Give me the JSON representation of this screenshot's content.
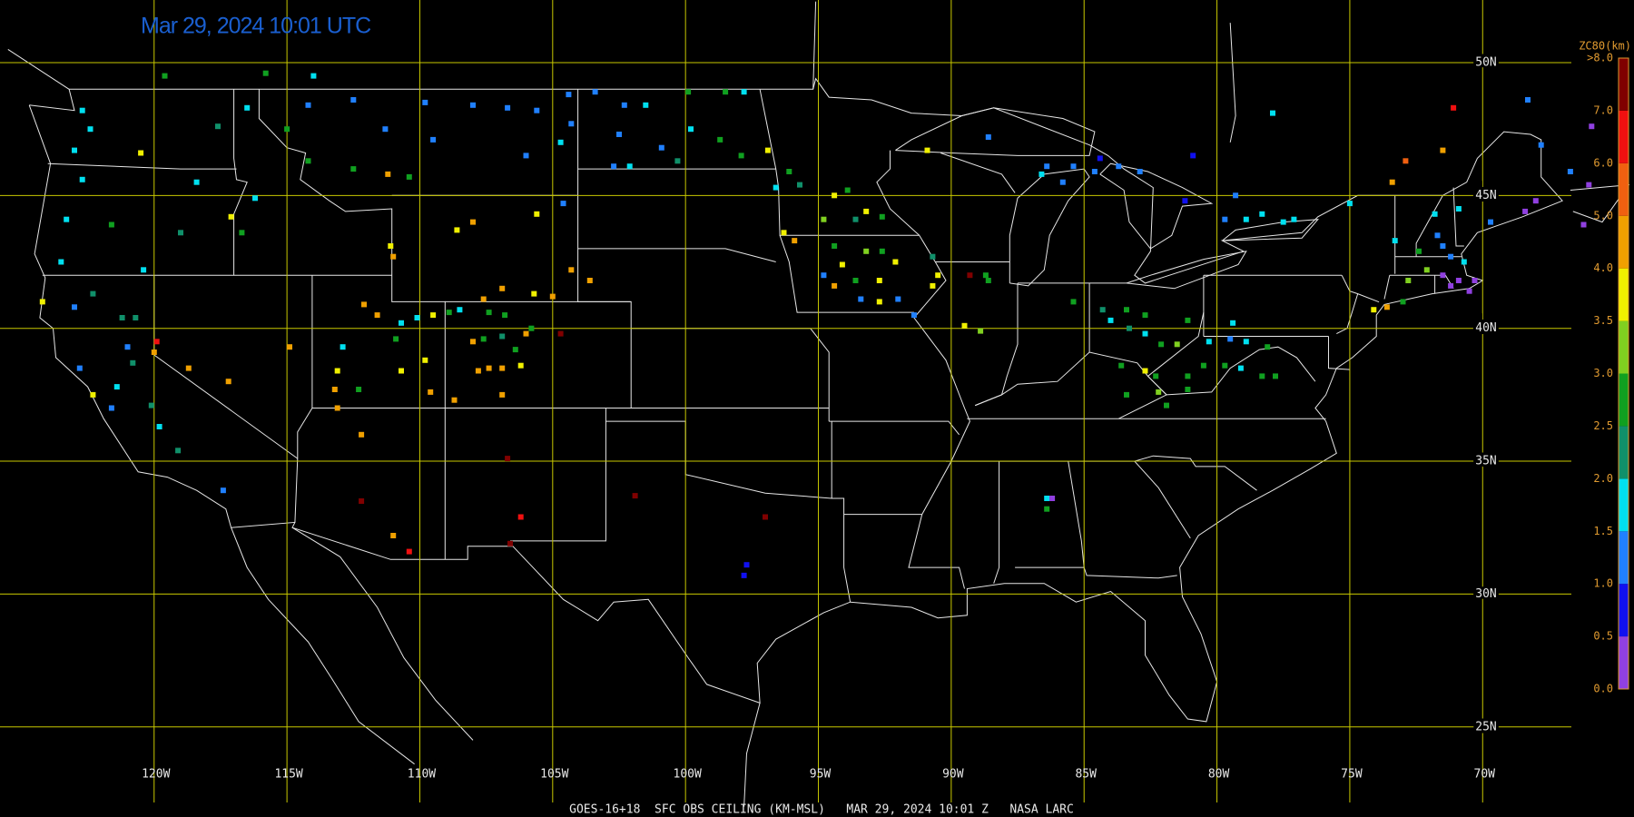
{
  "map": {
    "title": "Mar 29, 2024 10:01 UTC",
    "footer": "GOES-16+18  SFC OBS CEILING (KM-MSL)   MAR 29, 2024 10:01 Z   NASA LARC",
    "lon_ticks": [
      {
        "value": -120,
        "label": "120W"
      },
      {
        "value": -115,
        "label": "115W"
      },
      {
        "value": -110,
        "label": "110W"
      },
      {
        "value": -105,
        "label": "105W"
      },
      {
        "value": -100,
        "label": "100W"
      },
      {
        "value": -95,
        "label": "95W"
      },
      {
        "value": -90,
        "label": "90W"
      },
      {
        "value": -85,
        "label": "85W"
      },
      {
        "value": -80,
        "label": "80W"
      },
      {
        "value": -75,
        "label": "75W"
      },
      {
        "value": -70,
        "label": "70W"
      }
    ],
    "lat_ticks": [
      {
        "value": 50,
        "label": "50N"
      },
      {
        "value": 45,
        "label": "45N"
      },
      {
        "value": 40,
        "label": "40N"
      },
      {
        "value": 35,
        "label": "35N"
      },
      {
        "value": 30,
        "label": "30N"
      },
      {
        "value": 25,
        "label": "25N"
      }
    ],
    "grid_color": "#c8c800",
    "colorbar": {
      "title": "ZC80(km)",
      "levels": [
        {
          "value": 0,
          "label": "0.0"
        },
        {
          "value": 0.5,
          "label": "0.5"
        },
        {
          "value": 1,
          "label": "1.0"
        },
        {
          "value": 1.5,
          "label": "1.5"
        },
        {
          "value": 2,
          "label": "2.0"
        },
        {
          "value": 2.5,
          "label": "2.5"
        },
        {
          "value": 3,
          "label": "3.0"
        },
        {
          "value": 3.5,
          "label": "3.5"
        },
        {
          "value": 4,
          "label": "4.0"
        },
        {
          "value": 5,
          "label": "5.0"
        },
        {
          "value": 6,
          "label": "6.0"
        },
        {
          "value": 7,
          "label": "7.0"
        },
        {
          "value": 8,
          "label": ">8.0"
        }
      ],
      "colors": [
        "#9040e0",
        "#1010f0",
        "#2080ff",
        "#00e0f0",
        "#10906a",
        "#10a020",
        "#80d020",
        "#f0f000",
        "#f0a000",
        "#f06010",
        "#f01010",
        "#800000"
      ]
    },
    "stations": [
      [
        -119.6,
        49.5,
        2.8
      ],
      [
        -115.8,
        49.6,
        2.8
      ],
      [
        -114.0,
        49.5,
        1.8
      ],
      [
        -122.7,
        48.2,
        1.8
      ],
      [
        -122.4,
        47.5,
        1.8
      ],
      [
        -123.0,
        46.7,
        1.8
      ],
      [
        -122.7,
        45.6,
        1.8
      ],
      [
        -120.5,
        46.6,
        3.8
      ],
      [
        -118.4,
        45.5,
        1.8
      ],
      [
        -116.5,
        48.3,
        1.8
      ],
      [
        -117.6,
        47.6,
        2.2
      ],
      [
        -116.2,
        44.9,
        1.8
      ],
      [
        -117.1,
        44.2,
        3.8
      ],
      [
        -116.7,
        43.6,
        2.8
      ],
      [
        -121.6,
        43.9,
        2.8
      ],
      [
        -123.3,
        44.1,
        1.8
      ],
      [
        -123.5,
        42.5,
        1.8
      ],
      [
        -119.0,
        43.6,
        2.2
      ],
      [
        -120.4,
        42.2,
        1.8
      ],
      [
        -124.2,
        41.0,
        3.8
      ],
      [
        -123.0,
        40.8,
        1.2
      ],
      [
        -122.3,
        41.3,
        2.2
      ],
      [
        -121.2,
        40.4,
        2.2
      ],
      [
        -120.7,
        40.4,
        2.2
      ],
      [
        -119.9,
        39.5,
        6.5
      ],
      [
        -120.0,
        39.1,
        4.5
      ],
      [
        -118.7,
        38.5,
        4.5
      ],
      [
        -117.2,
        38.0,
        4.5
      ],
      [
        -121.0,
        39.3,
        1.2
      ],
      [
        -120.8,
        38.7,
        2.2
      ],
      [
        -122.8,
        38.5,
        1.2
      ],
      [
        -122.3,
        37.5,
        3.8
      ],
      [
        -121.4,
        37.8,
        1.8
      ],
      [
        -121.6,
        37.0,
        1.2
      ],
      [
        -120.1,
        37.1,
        2.2
      ],
      [
        -119.8,
        36.3,
        1.8
      ],
      [
        -119.1,
        35.4,
        2.2
      ],
      [
        -117.4,
        33.9,
        1.2
      ],
      [
        -112.5,
        48.6,
        1.2
      ],
      [
        -114.2,
        48.4,
        1.2
      ],
      [
        -111.3,
        47.5,
        1.2
      ],
      [
        -109.8,
        48.5,
        1.2
      ],
      [
        -108.0,
        48.4,
        1.2
      ],
      [
        -109.5,
        47.1,
        1.2
      ],
      [
        -114.2,
        46.3,
        2.8
      ],
      [
        -112.5,
        46.0,
        2.8
      ],
      [
        -111.2,
        45.8,
        4.5
      ],
      [
        -110.4,
        45.7,
        2.8
      ],
      [
        -115.0,
        47.5,
        2.8
      ],
      [
        -106.7,
        48.3,
        1.2
      ],
      [
        -105.6,
        48.2,
        1.2
      ],
      [
        -104.4,
        48.8,
        1.2
      ],
      [
        -104.3,
        47.7,
        1.2
      ],
      [
        -106.0,
        46.5,
        1.2
      ],
      [
        -104.7,
        47.0,
        1.8
      ],
      [
        -108.6,
        43.7,
        3.8
      ],
      [
        -108.0,
        44.0,
        4.5
      ],
      [
        -105.6,
        44.3,
        3.8
      ],
      [
        -104.6,
        44.7,
        1.2
      ],
      [
        -111.1,
        43.1,
        3.8
      ],
      [
        -111.0,
        42.7,
        4.5
      ],
      [
        -106.9,
        41.5,
        4.5
      ],
      [
        -105.7,
        41.3,
        3.8
      ],
      [
        -105.0,
        41.2,
        4.5
      ],
      [
        -104.3,
        42.2,
        4.5
      ],
      [
        -103.6,
        41.8,
        4.5
      ],
      [
        -107.6,
        41.1,
        4.5
      ],
      [
        -112.1,
        40.9,
        4.5
      ],
      [
        -111.6,
        40.5,
        4.5
      ],
      [
        -110.7,
        40.2,
        1.8
      ],
      [
        -110.1,
        40.4,
        1.8
      ],
      [
        -109.5,
        40.5,
        3.8
      ],
      [
        -108.9,
        40.6,
        2.8
      ],
      [
        -108.5,
        40.7,
        1.8
      ],
      [
        -107.4,
        40.6,
        2.8
      ],
      [
        -106.8,
        40.5,
        2.8
      ],
      [
        -105.8,
        40.0,
        2.8
      ],
      [
        -106.0,
        39.8,
        4.5
      ],
      [
        -104.7,
        39.8,
        7.5
      ],
      [
        -108.0,
        39.5,
        4.5
      ],
      [
        -107.6,
        39.6,
        2.8
      ],
      [
        -106.9,
        39.7,
        2.2
      ],
      [
        -106.4,
        39.2,
        2.8
      ],
      [
        -107.8,
        38.4,
        4.5
      ],
      [
        -107.4,
        38.5,
        4.5
      ],
      [
        -106.9,
        38.5,
        4.5
      ],
      [
        -106.2,
        38.6,
        3.8
      ],
      [
        -108.7,
        37.3,
        4.5
      ],
      [
        -106.9,
        37.5,
        4.5
      ],
      [
        -109.8,
        38.8,
        3.8
      ],
      [
        -110.9,
        39.6,
        2.8
      ],
      [
        -110.7,
        38.4,
        3.8
      ],
      [
        -112.9,
        39.3,
        1.8
      ],
      [
        -113.1,
        38.4,
        3.8
      ],
      [
        -112.3,
        37.7,
        2.8
      ],
      [
        -113.2,
        37.7,
        4.5
      ],
      [
        -114.9,
        39.3,
        4.5
      ],
      [
        -109.6,
        37.6,
        4.5
      ],
      [
        -113.1,
        37.0,
        4.5
      ],
      [
        -112.2,
        36.0,
        4.5
      ],
      [
        -112.2,
        33.5,
        7.5
      ],
      [
        -111.0,
        32.2,
        4.5
      ],
      [
        -110.4,
        31.6,
        6.5
      ],
      [
        -106.7,
        35.1,
        7.5
      ],
      [
        -106.2,
        32.9,
        6.5
      ],
      [
        -106.6,
        31.9,
        7.5
      ],
      [
        -101.9,
        33.7,
        7.5
      ],
      [
        -97.0,
        32.9,
        7.5
      ],
      [
        -97.7,
        31.1,
        0.8
      ],
      [
        -97.8,
        30.7,
        0.8
      ],
      [
        -103.4,
        48.9,
        1.2
      ],
      [
        -102.3,
        48.4,
        1.2
      ],
      [
        -101.5,
        48.4,
        1.8
      ],
      [
        -99.9,
        48.9,
        2.8
      ],
      [
        -98.5,
        48.9,
        2.8
      ],
      [
        -97.8,
        48.9,
        1.8
      ],
      [
        -102.5,
        47.3,
        1.2
      ],
      [
        -100.9,
        46.8,
        1.2
      ],
      [
        -99.8,
        47.5,
        1.8
      ],
      [
        -98.7,
        47.1,
        2.8
      ],
      [
        -97.9,
        46.5,
        2.8
      ],
      [
        -100.3,
        46.3,
        2.2
      ],
      [
        -102.1,
        46.1,
        1.8
      ],
      [
        -102.7,
        46.1,
        1.2
      ],
      [
        -96.9,
        46.7,
        3.8
      ],
      [
        -96.6,
        45.3,
        1.8
      ],
      [
        -96.1,
        45.9,
        2.8
      ],
      [
        -95.7,
        45.4,
        2.2
      ],
      [
        -94.4,
        45.0,
        3.8
      ],
      [
        -93.9,
        45.2,
        2.8
      ],
      [
        -93.2,
        44.4,
        3.8
      ],
      [
        -92.6,
        44.2,
        2.8
      ],
      [
        -93.6,
        44.1,
        2.2
      ],
      [
        -94.8,
        44.1,
        3.2
      ],
      [
        -96.3,
        43.6,
        3.8
      ],
      [
        -95.9,
        43.3,
        4.5
      ],
      [
        -94.4,
        43.1,
        2.8
      ],
      [
        -93.2,
        42.9,
        3.2
      ],
      [
        -92.6,
        42.9,
        2.8
      ],
      [
        -92.1,
        42.5,
        3.8
      ],
      [
        -94.1,
        42.4,
        3.8
      ],
      [
        -94.8,
        42.0,
        1.2
      ],
      [
        -93.6,
        41.8,
        2.8
      ],
      [
        -92.7,
        41.8,
        3.8
      ],
      [
        -94.4,
        41.6,
        4.5
      ],
      [
        -93.4,
        41.1,
        1.2
      ],
      [
        -92.7,
        41.0,
        3.8
      ],
      [
        -92.0,
        41.1,
        1.2
      ],
      [
        -91.4,
        40.5,
        1.2
      ],
      [
        -90.7,
        42.7,
        2.2
      ],
      [
        -90.5,
        42.0,
        3.8
      ],
      [
        -90.7,
        41.6,
        3.8
      ],
      [
        -90.9,
        46.7,
        3.8
      ],
      [
        -89.3,
        42.0,
        7.5
      ],
      [
        -88.7,
        42.0,
        2.8
      ],
      [
        -88.6,
        41.8,
        2.8
      ],
      [
        -89.5,
        40.1,
        3.8
      ],
      [
        -88.9,
        39.9,
        3.2
      ],
      [
        -88.6,
        47.2,
        1.2
      ],
      [
        -86.4,
        46.1,
        1.2
      ],
      [
        -85.4,
        46.1,
        1.2
      ],
      [
        -84.4,
        46.4,
        0.8
      ],
      [
        -84.6,
        45.9,
        1.2
      ],
      [
        -83.7,
        46.1,
        1.2
      ],
      [
        -82.9,
        45.9,
        1.2
      ],
      [
        -80.9,
        46.5,
        0.8
      ],
      [
        -81.2,
        44.8,
        0.8
      ],
      [
        -86.6,
        45.8,
        1.8
      ],
      [
        -85.8,
        45.5,
        1.2
      ],
      [
        -85.4,
        41.0,
        2.8
      ],
      [
        -84.3,
        40.7,
        2.2
      ],
      [
        -84.0,
        40.3,
        1.8
      ],
      [
        -83.4,
        40.7,
        2.8
      ],
      [
        -82.7,
        40.5,
        2.8
      ],
      [
        -83.3,
        40.0,
        2.2
      ],
      [
        -82.7,
        39.8,
        1.8
      ],
      [
        -82.1,
        39.4,
        2.8
      ],
      [
        -81.5,
        39.4,
        3.2
      ],
      [
        -83.6,
        38.6,
        2.8
      ],
      [
        -82.7,
        38.4,
        3.8
      ],
      [
        -82.3,
        38.2,
        2.8
      ],
      [
        -81.1,
        38.2,
        2.8
      ],
      [
        -80.5,
        38.6,
        2.8
      ],
      [
        -83.4,
        37.5,
        2.8
      ],
      [
        -82.2,
        37.6,
        3.2
      ],
      [
        -81.1,
        37.7,
        2.8
      ],
      [
        -81.9,
        37.1,
        2.8
      ],
      [
        -80.3,
        39.5,
        1.8
      ],
      [
        -79.5,
        39.6,
        1.2
      ],
      [
        -78.9,
        39.5,
        1.8
      ],
      [
        -79.7,
        38.6,
        2.8
      ],
      [
        -79.1,
        38.5,
        1.8
      ],
      [
        -78.1,
        39.3,
        2.8
      ],
      [
        -78.3,
        38.2,
        2.8
      ],
      [
        -77.8,
        38.2,
        2.8
      ],
      [
        -79.4,
        40.2,
        1.8
      ],
      [
        -81.1,
        40.3,
        2.8
      ],
      [
        -86.4,
        33.6,
        1.8
      ],
      [
        -86.2,
        33.6,
        0.3
      ],
      [
        -86.4,
        33.2,
        2.8
      ],
      [
        -79.7,
        44.1,
        1.2
      ],
      [
        -78.9,
        44.1,
        1.8
      ],
      [
        -78.3,
        44.3,
        1.8
      ],
      [
        -77.9,
        48.1,
        1.8
      ],
      [
        -79.3,
        45.0,
        1.2
      ],
      [
        -77.5,
        44.0,
        1.8
      ],
      [
        -77.1,
        44.1,
        1.8
      ],
      [
        -75.0,
        44.7,
        1.8
      ],
      [
        -73.4,
        45.5,
        4.5
      ],
      [
        -71.1,
        48.3,
        6.5
      ],
      [
        -72.9,
        46.3,
        5.5
      ],
      [
        -71.5,
        46.7,
        4.5
      ],
      [
        -68.3,
        48.6,
        1.2
      ],
      [
        -67.8,
        46.9,
        1.2
      ],
      [
        -68.0,
        44.8,
        0.3
      ],
      [
        -68.4,
        44.4,
        0.3
      ],
      [
        -69.7,
        44.0,
        1.2
      ],
      [
        -70.9,
        44.5,
        1.8
      ],
      [
        -71.8,
        44.3,
        1.8
      ],
      [
        -72.4,
        42.9,
        2.8
      ],
      [
        -71.5,
        43.1,
        1.2
      ],
      [
        -71.2,
        42.7,
        1.2
      ],
      [
        -70.7,
        42.5,
        1.8
      ],
      [
        -72.1,
        42.2,
        3.2
      ],
      [
        -72.8,
        41.8,
        3.2
      ],
      [
        -71.5,
        42.0,
        0.3
      ],
      [
        -70.9,
        41.8,
        0.3
      ],
      [
        -70.3,
        41.8,
        0.3
      ],
      [
        -70.5,
        41.4,
        0.3
      ],
      [
        -71.2,
        41.6,
        0.3
      ],
      [
        -73.0,
        41.0,
        2.8
      ],
      [
        -73.6,
        40.8,
        4.5
      ],
      [
        -74.1,
        40.7,
        3.8
      ],
      [
        -71.7,
        43.5,
        1.2
      ],
      [
        -73.3,
        43.3,
        1.8
      ],
      [
        -66.7,
        45.9,
        1.2
      ],
      [
        -65.9,
        47.6,
        0.3
      ],
      [
        -66.0,
        45.4,
        0.3
      ],
      [
        -66.2,
        43.9,
        0.3
      ]
    ]
  }
}
